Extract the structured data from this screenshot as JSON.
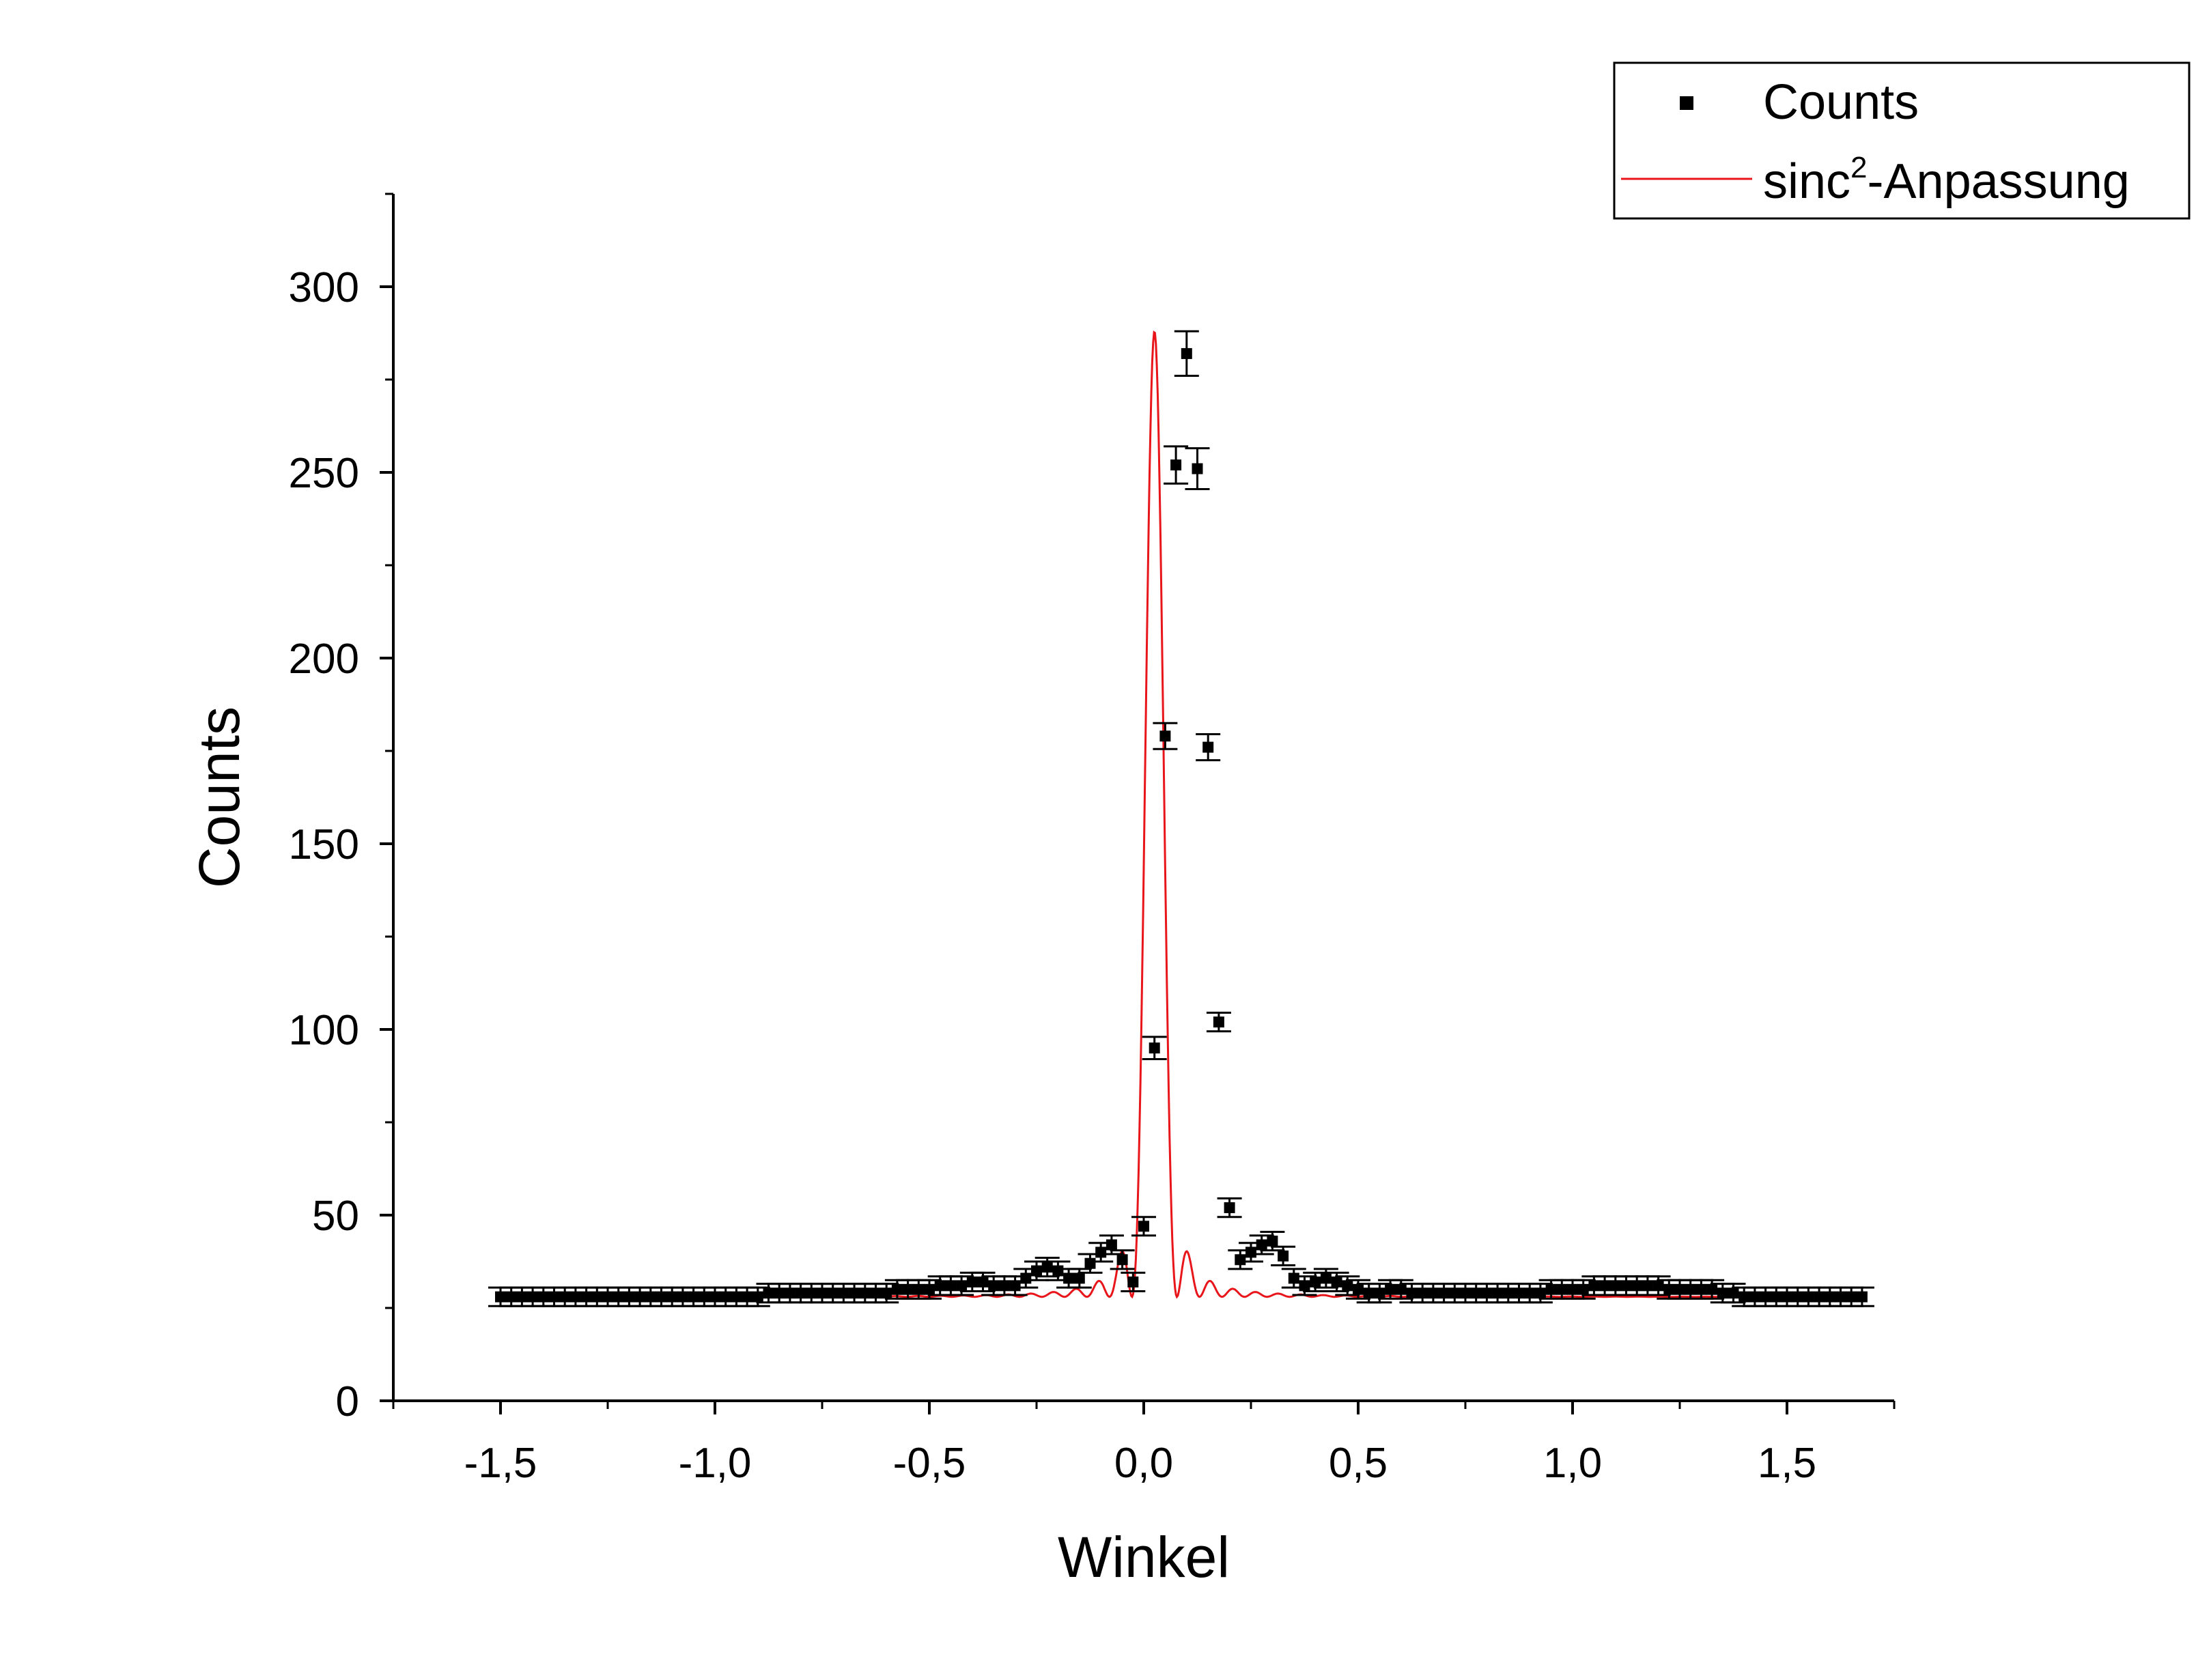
{
  "chart_data": {
    "type": "scatter",
    "xlabel": "Winkel",
    "ylabel": "Counts",
    "xlim": [
      -1.75,
      1.75
    ],
    "ylim": [
      0,
      325
    ],
    "x_ticks": [
      -1.5,
      -1.0,
      -0.5,
      0.0,
      0.5,
      1.0,
      1.5
    ],
    "x_tick_labels": [
      "-1,5",
      "-1,0",
      "-0,5",
      "0,0",
      "0,5",
      "1,0",
      "1,5"
    ],
    "y_ticks": [
      0,
      50,
      100,
      150,
      200,
      250,
      300
    ],
    "y_tick_labels": [
      "0",
      "50",
      "100",
      "150",
      "200",
      "250",
      "300"
    ],
    "grid": false,
    "legend_position": "top-right",
    "legend": [
      {
        "series": "counts",
        "label": "Counts",
        "marker": "square"
      },
      {
        "series": "fit",
        "label_main": "sinc",
        "label_sup": "2",
        "label_rest": "-Anpassung",
        "marker": "line"
      }
    ],
    "colors": {
      "counts": "#000000",
      "fit": "#e8161b"
    },
    "series": [
      {
        "name": "Counts",
        "kind": "points_with_error_bars",
        "x_start": -1.5,
        "x_step": 0.025,
        "values": [
          28,
          28,
          28,
          28,
          28,
          28,
          28,
          28,
          28,
          28,
          28,
          28,
          28,
          28,
          28,
          28,
          28,
          28,
          28,
          28,
          28,
          28,
          28,
          28,
          28,
          29,
          29,
          29,
          29,
          29,
          29,
          29,
          29,
          29,
          29,
          29,
          29,
          30,
          30,
          30,
          30,
          31,
          31,
          31,
          32,
          32,
          31,
          31,
          31,
          33,
          35,
          36,
          35,
          33,
          33,
          37,
          40,
          42,
          38,
          32,
          47,
          95,
          179,
          252,
          282,
          251,
          176,
          102,
          52,
          38,
          40,
          42,
          43,
          39,
          33,
          31,
          32,
          33,
          32,
          31,
          30,
          29,
          29,
          30,
          30,
          29,
          29,
          29,
          29,
          29,
          29,
          29,
          29,
          29,
          29,
          29,
          29,
          29,
          30,
          30,
          30,
          30,
          31,
          31,
          31,
          31,
          31,
          31,
          31,
          30,
          30,
          30,
          30,
          30,
          29,
          29,
          28,
          28,
          28,
          28,
          28,
          28,
          28,
          28,
          28,
          28,
          28,
          28
        ],
        "errors": [
          2.5,
          2.5,
          2.5,
          2.5,
          2.5,
          2.5,
          2.5,
          2.5,
          2.5,
          2.5,
          2.5,
          2.5,
          2.5,
          2.5,
          2.5,
          2.5,
          2.5,
          2.5,
          2.5,
          2.5,
          2.5,
          2.5,
          2.5,
          2.5,
          2.5,
          2.5,
          2.5,
          2.5,
          2.5,
          2.5,
          2.5,
          2.5,
          2.5,
          2.5,
          2.5,
          2.5,
          2.5,
          2.5,
          2.5,
          2.5,
          2.5,
          2.5,
          2.5,
          2.5,
          2.5,
          2.5,
          2.5,
          2.5,
          2.5,
          2.5,
          2.5,
          2.5,
          2.5,
          2.5,
          2.5,
          2.5,
          2.5,
          2.5,
          2.5,
          2.5,
          2.5,
          3,
          3.5,
          5,
          6,
          5.5,
          3.5,
          2.5,
          2.5,
          2.5,
          2.5,
          2.5,
          2.5,
          2.5,
          2.5,
          2.5,
          2.5,
          2.5,
          2.5,
          2.5,
          2.5,
          2.5,
          2.5,
          2.5,
          2.5,
          2.5,
          2.5,
          2.5,
          2.5,
          2.5,
          2.5,
          2.5,
          2.5,
          2.5,
          2.5,
          2.5,
          2.5,
          2.5,
          2.5,
          2.5,
          2.5,
          2.5,
          2.5,
          2.5,
          2.5,
          2.5,
          2.5,
          2.5,
          2.5,
          2.5,
          2.5,
          2.5,
          2.5,
          2.5,
          2.5,
          2.5,
          2.5,
          2.5,
          2.5,
          2.5,
          2.5,
          2.5,
          2.5,
          2.5,
          2.5,
          2.5,
          2.5,
          2.5
        ]
      },
      {
        "name": "sinc2-Anpassung",
        "kind": "line",
        "model": "sinc2",
        "parameters": {
          "baseline": 28,
          "amplitude": 260,
          "center": 0.025,
          "width": 0.0525
        },
        "x_range": [
          -1.5,
          1.48
        ]
      }
    ]
  }
}
